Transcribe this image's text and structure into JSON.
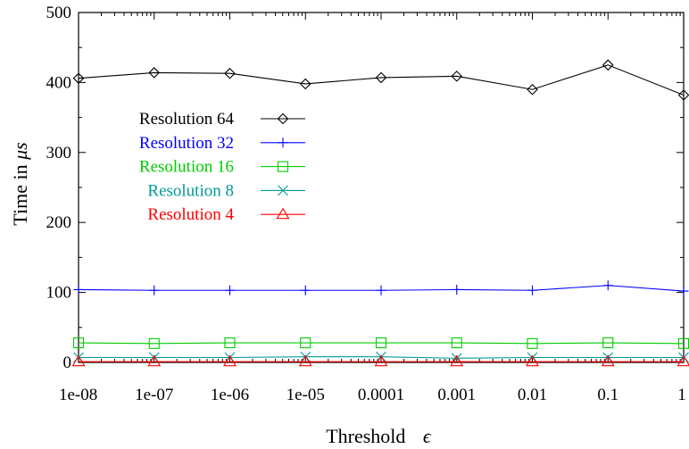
{
  "chart_data": {
    "type": "line",
    "title": "",
    "xlabel": "Threshold",
    "xlabel_symbol": "ϵ",
    "ylabel": "Time in",
    "ylabel_symbol": "μs",
    "x_scale": "log",
    "categories": [
      "1e-08",
      "1e-07",
      "1e-06",
      "1e-05",
      "0.0001",
      "0.001",
      "0.01",
      "0.1",
      "1"
    ],
    "ylim": [
      0,
      500
    ],
    "yticks": [
      "0",
      "100",
      "200",
      "300",
      "400",
      "500"
    ],
    "grid": false,
    "legend_position": "upper-left",
    "series": [
      {
        "name": "Resolution 64",
        "color": "#000000",
        "marker": "diamond",
        "values": [
          406,
          414,
          413,
          398,
          407,
          409,
          390,
          425,
          382
        ]
      },
      {
        "name": "Resolution 32",
        "color": "#0000ff",
        "marker": "plus",
        "values": [
          104,
          103,
          103,
          103,
          103,
          104,
          103,
          110,
          102
        ]
      },
      {
        "name": "Resolution 16",
        "color": "#00cc00",
        "marker": "square",
        "values": [
          28,
          27,
          28,
          28,
          28,
          28,
          27,
          28,
          27
        ]
      },
      {
        "name": "Resolution 8",
        "color": "#009999",
        "marker": "cross",
        "values": [
          7,
          7,
          7,
          8,
          8,
          6,
          7,
          7,
          7
        ]
      },
      {
        "name": "Resolution 4",
        "color": "#ff0000",
        "marker": "triangle",
        "values": [
          1,
          1,
          1,
          1,
          1,
          1,
          1,
          1,
          1
        ]
      }
    ]
  }
}
